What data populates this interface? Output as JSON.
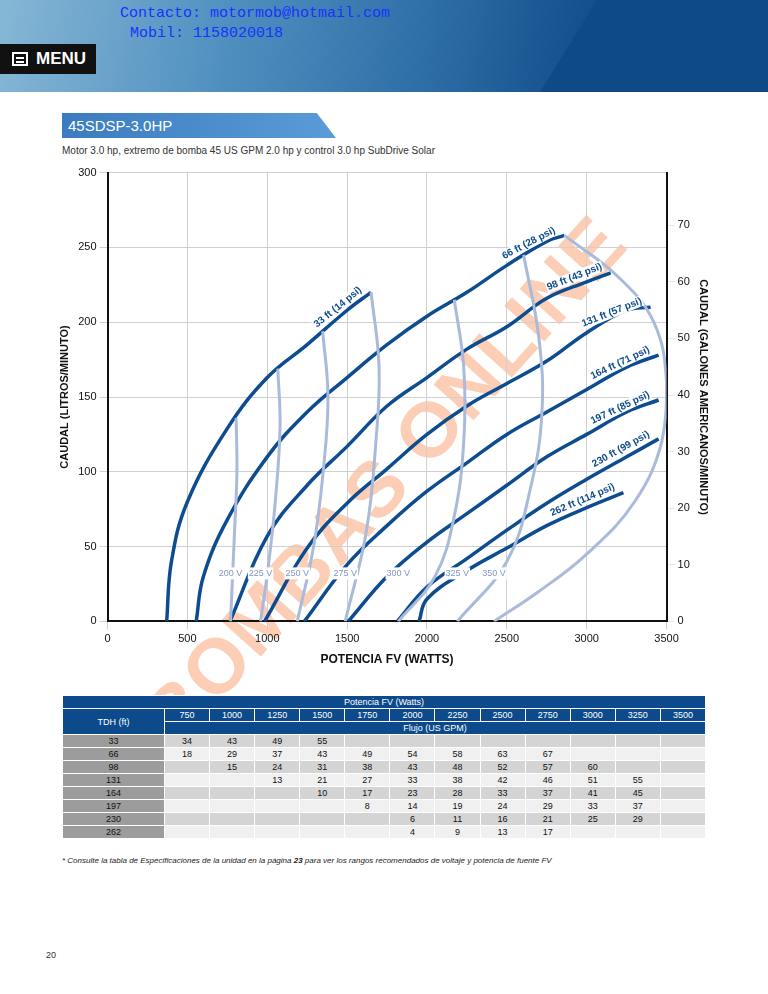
{
  "header": {
    "contact": "Contacto: motormob@hotmail.com",
    "mobile": "Mobil: 1158020018",
    "menu": "MENU"
  },
  "title": "45SDSP-3.0HP",
  "subtitle": "Motor 3.0 hp, extremo de bomba 45 US GPM 2.0 hp y control 3.0 hp SubDrive Solar",
  "watermark": "BOMBAS ONLINE",
  "chart_data": {
    "type": "line",
    "xlabel": "POTENCIA FV (WATTS)",
    "ylabel": "CAUDAL (LITROS/MINUTO)",
    "y2label": "CAUDAL (GALONES AMERICANOS/MINUTO)",
    "xlim": [
      0,
      3500
    ],
    "xticks": [
      0,
      500,
      1000,
      1500,
      2000,
      2500,
      3000,
      3500
    ],
    "ylim": [
      0,
      300
    ],
    "yticks": [
      0,
      50,
      100,
      150,
      200,
      250,
      300
    ],
    "y2lim": [
      0,
      79.3
    ],
    "y2ticks": [
      0,
      10,
      20,
      30,
      40,
      50,
      60,
      70
    ],
    "grid": true,
    "series": [
      {
        "name": "200 V",
        "color": "#a9badb",
        "x": [
          805,
          810,
          795,
          770
        ],
        "values": [
          136,
          100,
          60,
          0
        ]
      },
      {
        "name": "225 V",
        "color": "#a9badb",
        "x": [
          1066,
          1080,
          1050,
          1010,
          958
        ],
        "values": [
          169,
          130,
          80,
          40,
          0
        ]
      },
      {
        "name": "250 V",
        "color": "#a9badb",
        "x": [
          1347,
          1380,
          1350,
          1290,
          1188
        ],
        "values": [
          194,
          150,
          100,
          50,
          0
        ]
      },
      {
        "name": "275 V",
        "color": "#a9badb",
        "x": [
          1650,
          1700,
          1680,
          1620,
          1488
        ],
        "values": [
          220,
          170,
          120,
          60,
          0
        ]
      },
      {
        "name": "300 V",
        "color": "#a9badb",
        "x": [
          2171,
          2230,
          2230,
          2170,
          2050,
          1820
        ],
        "values": [
          215,
          170,
          120,
          70,
          30,
          0
        ]
      },
      {
        "name": "325 V",
        "color": "#a9badb",
        "x": [
          2605,
          2700,
          2720,
          2650,
          2500,
          2190
        ],
        "values": [
          245,
          190,
          140,
          90,
          40,
          0
        ]
      },
      {
        "name": "350 V",
        "color": "#a9badb",
        "x": [
          2860,
          3200,
          3420,
          3500,
          3470,
          3300,
          3000,
          2700,
          2420
        ],
        "values": [
          258,
          230,
          200,
          160,
          120,
          80,
          45,
          20,
          0
        ]
      },
      {
        "name": "33 ft (14 psi)",
        "color": "#0d4c8e",
        "x": [
          370,
          400,
          500,
          750,
          1000,
          1250,
          1500,
          1650
        ],
        "values": [
          0,
          40,
          80,
          129,
          163,
          185,
          208,
          220
        ]
      },
      {
        "name": "66 ft (28 psi)",
        "color": "#0d4c8e",
        "x": [
          555,
          600,
          750,
          1000,
          1250,
          1500,
          1750,
          2000,
          2250,
          2500,
          2750,
          2860
        ],
        "values": [
          0,
          30,
          68,
          110,
          140,
          163,
          185,
          204,
          220,
          238,
          254,
          258
        ]
      },
      {
        "name": "98 ft (43 psi)",
        "color": "#0d4c8e",
        "x": [
          766,
          1000,
          1250,
          1500,
          1750,
          2000,
          2250,
          2500,
          2750,
          3000,
          3150
        ],
        "values": [
          0,
          57,
          91,
          117,
          144,
          163,
          182,
          197,
          216,
          227,
          233
        ]
      },
      {
        "name": "131 ft (57 psi)",
        "color": "#0d4c8e",
        "x": [
          983,
          1250,
          1500,
          1750,
          2000,
          2250,
          2500,
          2750,
          3000,
          3250,
          3400
        ],
        "values": [
          0,
          49,
          79,
          102,
          125,
          144,
          159,
          174,
          193,
          208,
          210
        ]
      },
      {
        "name": "164 ft (71 psi)",
        "color": "#0d4c8e",
        "x": [
          1232,
          1500,
          1750,
          2000,
          2250,
          2500,
          2750,
          3000,
          3250,
          3450
        ],
        "values": [
          0,
          38,
          64,
          87,
          106,
          125,
          140,
          155,
          170,
          178
        ]
      },
      {
        "name": "197 ft (85 psi)",
        "color": "#0d4c8e",
        "x": [
          1507,
          1750,
          2000,
          2250,
          2500,
          2750,
          3000,
          3250,
          3450
        ],
        "values": [
          0,
          30,
          53,
          72,
          91,
          110,
          125,
          140,
          148
        ]
      },
      {
        "name": "230 ft (99 psi)",
        "color": "#0d4c8e",
        "x": [
          1814,
          2000,
          2250,
          2500,
          2750,
          3000,
          3250,
          3450
        ],
        "values": [
          0,
          23,
          42,
          61,
          79,
          95,
          110,
          122
        ]
      },
      {
        "name": "262 ft (114 psi)",
        "color": "#0d4c8e",
        "x": [
          1950,
          2000,
          2250,
          2500,
          2750,
          3000,
          3230
        ],
        "values": [
          0,
          15,
          34,
          49,
          64,
          76,
          86
        ]
      }
    ]
  },
  "table": {
    "title": "Potencia FV (Watts)",
    "row_header": "TDH (ft)",
    "unit": "Flujo (US GPM)",
    "columns": [
      750,
      1000,
      1250,
      1500,
      1750,
      2000,
      2250,
      2500,
      2750,
      3000,
      3250,
      3500
    ],
    "rows": [
      [
        33,
        34,
        43,
        49,
        55,
        null,
        null,
        null,
        null,
        null,
        null,
        null,
        null
      ],
      [
        66,
        18,
        29,
        37,
        43,
        49,
        54,
        58,
        63,
        67,
        null,
        null,
        null
      ],
      [
        98,
        null,
        15,
        24,
        31,
        38,
        43,
        48,
        52,
        57,
        60,
        null,
        null
      ],
      [
        131,
        null,
        null,
        13,
        21,
        27,
        33,
        38,
        42,
        46,
        51,
        55,
        null
      ],
      [
        164,
        null,
        null,
        null,
        10,
        17,
        23,
        28,
        33,
        37,
        41,
        45,
        null
      ],
      [
        197,
        null,
        null,
        null,
        null,
        8,
        14,
        19,
        24,
        29,
        33,
        37,
        null
      ],
      [
        230,
        null,
        null,
        null,
        null,
        null,
        6,
        11,
        16,
        21,
        25,
        29,
        null
      ],
      [
        262,
        null,
        null,
        null,
        null,
        null,
        4,
        9,
        13,
        17,
        null,
        null,
        null
      ]
    ]
  },
  "footnote": {
    "before": "* Consulte la tabla de Especificaciones de la unidad en la página ",
    "page": "23",
    "after": " para ver los rangos recomendados de voltaje y potencia de fuente FV"
  },
  "page_number": "20"
}
